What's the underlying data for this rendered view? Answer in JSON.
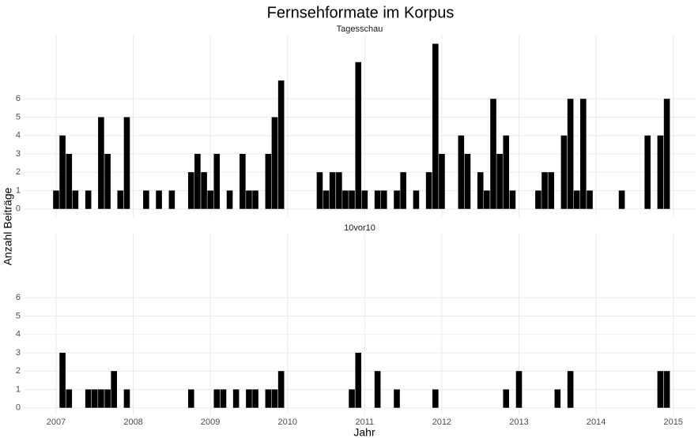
{
  "chart_data": {
    "type": "bar",
    "title": "Fernsehformate im Korpus",
    "x_label": "Jahr",
    "y_label": "Anzahl Beiträge",
    "color": "#000000",
    "grid": true,
    "xlim": [
      2006.58,
      2015.29
    ],
    "xticks": [
      2007,
      2008,
      2009,
      2010,
      2011,
      2012,
      2013,
      2014,
      2015
    ],
    "ylim": [
      -0.4,
      9.45
    ],
    "yticks": [
      0,
      1,
      2,
      3,
      4,
      5,
      6
    ],
    "series": [
      {
        "name": "Tagesschau",
        "x": [
          2007,
          2007.083,
          2007.167,
          2007.25,
          2007.417,
          2007.583,
          2007.667,
          2007.833,
          2007.917,
          2008.167,
          2008.333,
          2008.5,
          2008.75,
          2008.833,
          2008.917,
          2009,
          2009.083,
          2009.25,
          2009.417,
          2009.5,
          2009.583,
          2009.75,
          2009.833,
          2009.917,
          2010.417,
          2010.5,
          2010.583,
          2010.667,
          2010.75,
          2010.833,
          2010.917,
          2011,
          2011.167,
          2011.25,
          2011.417,
          2011.5,
          2011.667,
          2011.833,
          2011.917,
          2012,
          2012.25,
          2012.333,
          2012.5,
          2012.583,
          2012.667,
          2012.75,
          2012.833,
          2012.917,
          2013.25,
          2013.333,
          2013.417,
          2013.583,
          2013.667,
          2013.75,
          2013.833,
          2013.917,
          2014.333,
          2014.667,
          2014.833,
          2014.917
        ],
        "values": [
          1,
          4,
          3,
          1,
          1,
          5,
          3,
          1,
          5,
          1,
          1,
          1,
          2,
          3,
          2,
          1,
          3,
          1,
          3,
          1,
          1,
          3,
          5,
          7,
          2,
          1,
          2,
          2,
          1,
          1,
          8,
          1,
          1,
          1,
          1,
          2,
          1,
          2,
          9,
          3,
          4,
          3,
          2,
          1,
          6,
          3,
          4,
          1,
          1,
          2,
          2,
          4,
          6,
          1,
          6,
          1,
          1,
          4,
          4,
          6
        ]
      },
      {
        "name": "10vor10",
        "x": [
          2007.083,
          2007.167,
          2007.417,
          2007.5,
          2007.583,
          2007.667,
          2007.75,
          2007.917,
          2008.75,
          2009.083,
          2009.167,
          2009.333,
          2009.5,
          2009.583,
          2009.75,
          2009.833,
          2009.917,
          2010.833,
          2010.917,
          2011.167,
          2011.417,
          2011.917,
          2012.833,
          2013,
          2013.5,
          2013.667,
          2014.833,
          2014.917
        ],
        "values": [
          3,
          1,
          1,
          1,
          1,
          1,
          2,
          1,
          1,
          1,
          1,
          1,
          1,
          1,
          1,
          1,
          2,
          1,
          3,
          2,
          1,
          1,
          1,
          2,
          1,
          2,
          2,
          2
        ]
      }
    ]
  }
}
